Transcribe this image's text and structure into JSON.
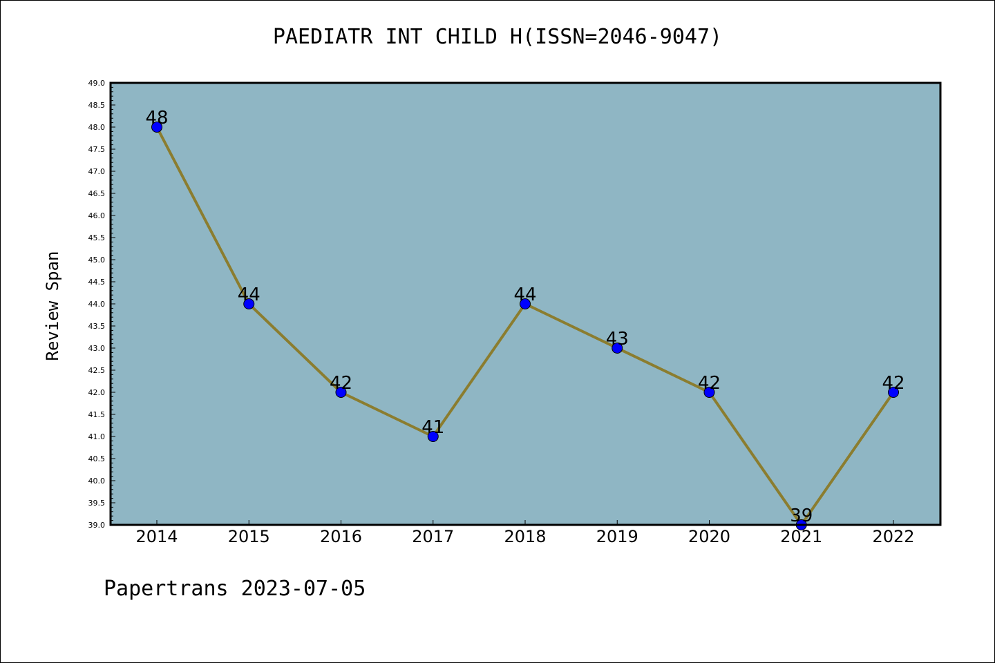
{
  "title": "PAEDIATR INT CHILD H(ISSN=2046-9047)",
  "ylabel": "Review Span",
  "footer": "Papertrans 2023-07-05",
  "colors": {
    "plot_background": "#8fb6c4",
    "line": "#8b7d2f",
    "marker": "#0000ff"
  },
  "chart_data": {
    "type": "line",
    "categories": [
      "2014",
      "2015",
      "2016",
      "2017",
      "2018",
      "2019",
      "2020",
      "2021",
      "2022"
    ],
    "values": [
      48,
      44,
      42,
      41,
      44,
      43,
      42,
      39,
      42
    ],
    "ylim": [
      39.0,
      49.0
    ],
    "ytick_step": 0.5,
    "xlabel": "",
    "ylabel": "Review Span",
    "grid": false,
    "legend": "none"
  }
}
